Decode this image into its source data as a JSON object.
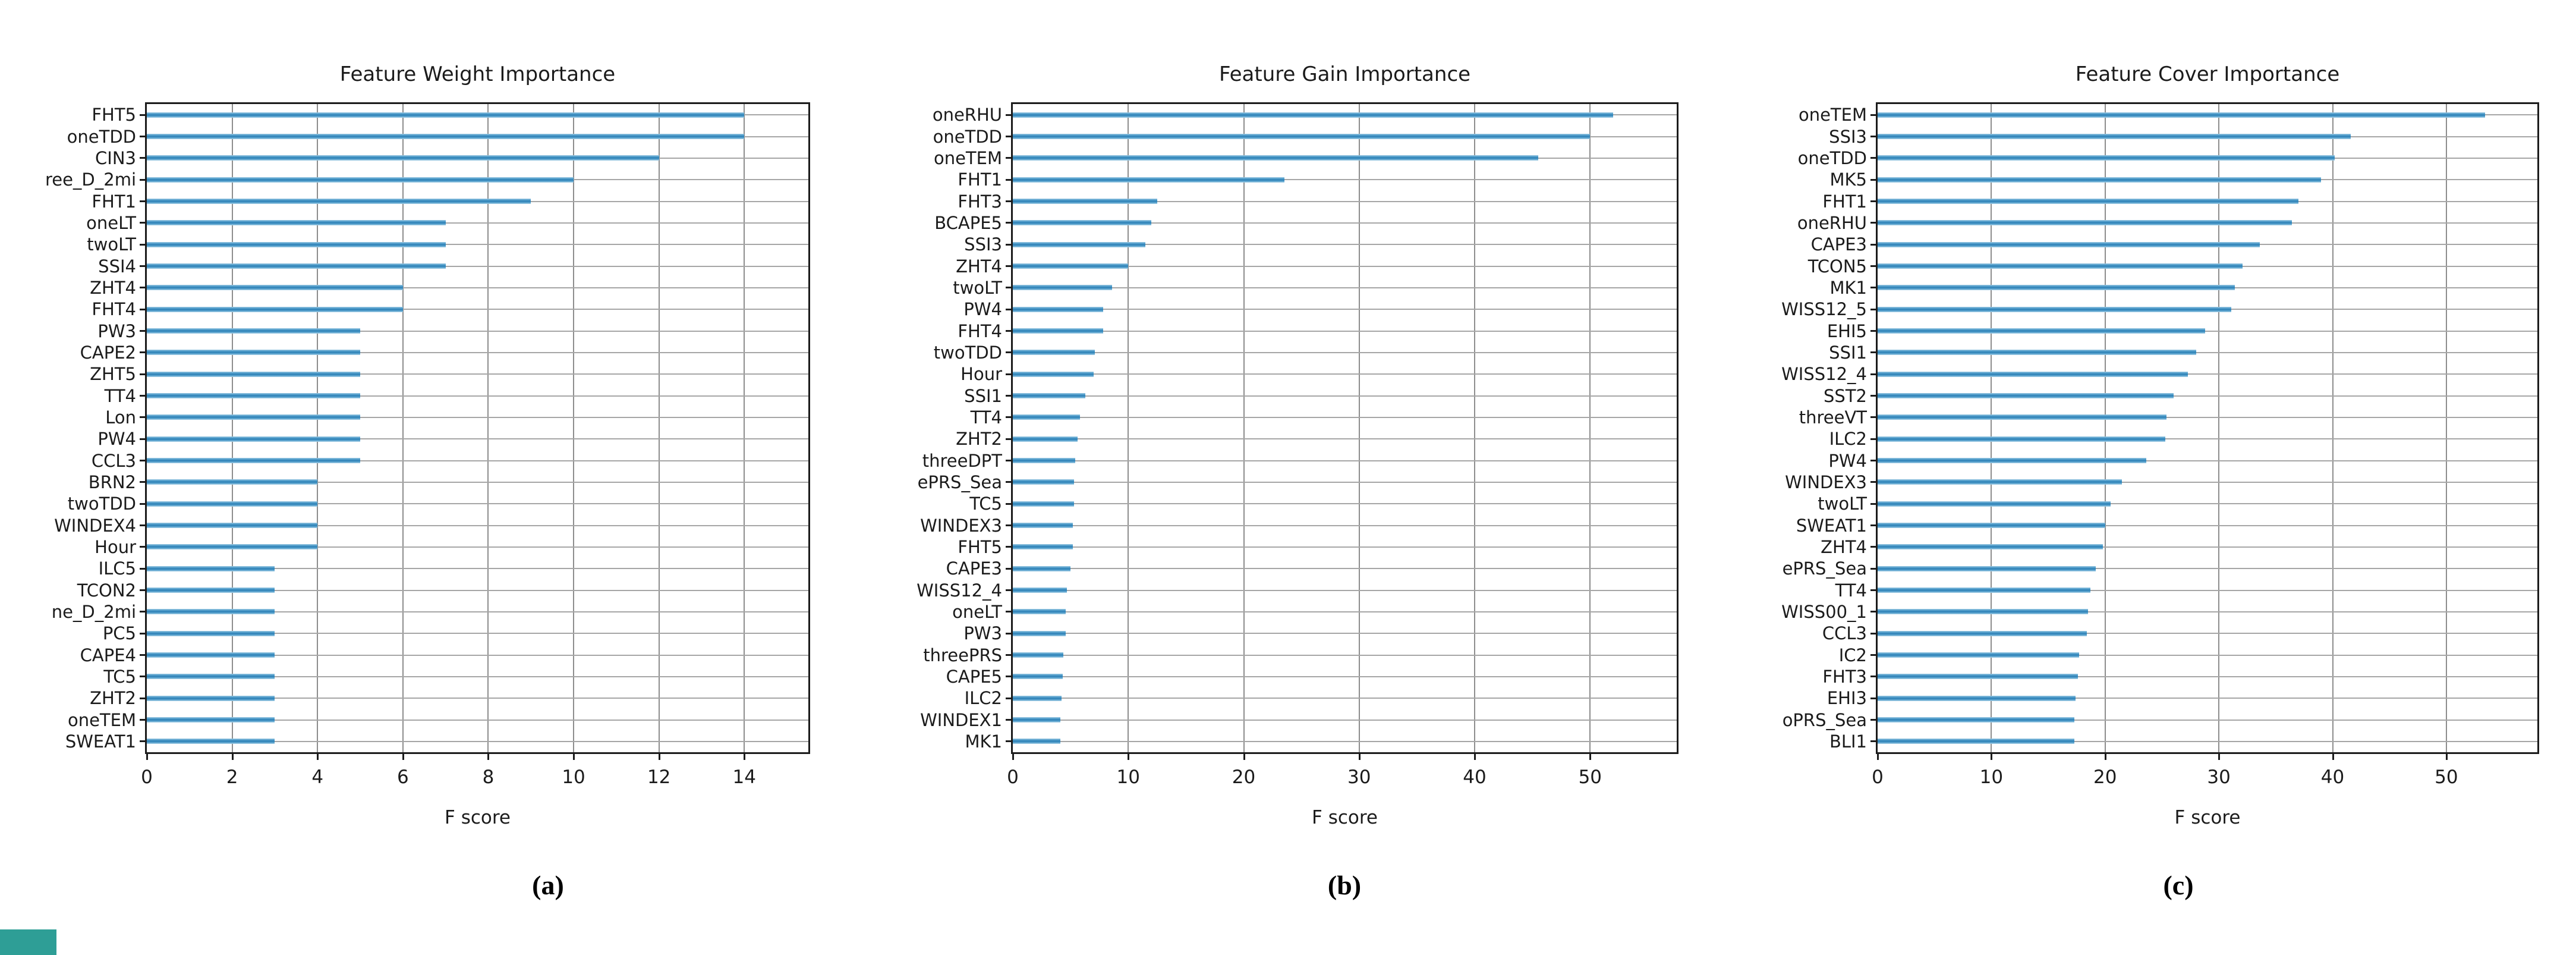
{
  "figure": {
    "background": "#ffffff",
    "bar_color": "#2d80b6",
    "bar_color_light": "#9cc9e2",
    "grid_color_h": "#a6a6a6",
    "grid_color_v": "#8d8d8d",
    "frame_color": "#1c1c1c",
    "corner_accent_color": "#2e9e96"
  },
  "captions": {
    "a": "(a)",
    "b": "(b)",
    "c": "(c)"
  },
  "chart_data": [
    {
      "id": "a",
      "type": "bar",
      "orientation": "horizontal",
      "title": "Feature Weight Importance",
      "xlabel": "F score",
      "grid": true,
      "xlim": [
        0,
        15.5
      ],
      "xticks": [
        0,
        2,
        4,
        6,
        8,
        10,
        12,
        14
      ],
      "categories": [
        "FHT5",
        "oneTDD",
        "CIN3",
        "ree_D_2mi",
        "FHT1",
        "oneLT",
        "twoLT",
        "SSI4",
        "ZHT4",
        "FHT4",
        "PW3",
        "CAPE2",
        "ZHT5",
        "TT4",
        "Lon",
        "PW4",
        "CCL3",
        "BRN2",
        "twoTDD",
        "WINDEX4",
        "Hour",
        "ILC5",
        "TCON2",
        "ne_D_2mi",
        "PC5",
        "CAPE4",
        "TC5",
        "ZHT2",
        "oneTEM",
        "SWEAT1"
      ],
      "values": [
        14,
        14,
        12,
        10,
        9,
        7,
        7,
        7,
        6,
        6,
        5,
        5,
        5,
        5,
        5,
        5,
        5,
        4,
        4,
        4,
        4,
        3,
        3,
        3,
        3,
        3,
        3,
        3,
        3,
        3
      ]
    },
    {
      "id": "b",
      "type": "bar",
      "orientation": "horizontal",
      "title": "Feature Gain Importance",
      "xlabel": "F score",
      "grid": true,
      "xlim": [
        0,
        57.5
      ],
      "xticks": [
        0,
        10,
        20,
        30,
        40,
        50
      ],
      "categories": [
        "oneRHU",
        "oneTDD",
        "oneTEM",
        "FHT1",
        "FHT3",
        "BCAPE5",
        "SSI3",
        "ZHT4",
        "twoLT",
        "PW4",
        "FHT4",
        "twoTDD",
        "Hour",
        "SSI1",
        "TT4",
        "ZHT2",
        "threeDPT",
        "ePRS_Sea",
        "TC5",
        "WINDEX3",
        "FHT5",
        "CAPE3",
        "WISS12_4",
        "oneLT",
        "PW3",
        "threePRS",
        "CAPE5",
        "ILC2",
        "WINDEX1",
        "MK1"
      ],
      "values": [
        52,
        50,
        45.5,
        23.5,
        12.5,
        12,
        11.5,
        10,
        8.6,
        7.8,
        7.8,
        7.1,
        7,
        6.3,
        5.8,
        5.6,
        5.4,
        5.3,
        5.3,
        5.2,
        5.2,
        5,
        4.7,
        4.6,
        4.6,
        4.4,
        4.3,
        4.2,
        4.1,
        4.1
      ]
    },
    {
      "id": "c",
      "type": "bar",
      "orientation": "horizontal",
      "title": "Feature Cover Importance",
      "xlabel": "F score",
      "grid": true,
      "xlim": [
        0,
        58
      ],
      "xticks": [
        0,
        10,
        20,
        30,
        40,
        50
      ],
      "categories": [
        "oneTEM",
        "SSI3",
        "oneTDD",
        "MK5",
        "FHT1",
        "oneRHU",
        "CAPE3",
        "TCON5",
        "MK1",
        "WISS12_5",
        "EHI5",
        "SSI1",
        "WISS12_4",
        "SST2",
        "threeVT",
        "ILC2",
        "PW4",
        "WINDEX3",
        "twoLT",
        "SWEAT1",
        "ZHT4",
        "ePRS_Sea",
        "TT4",
        "WISS00_1",
        "CCL3",
        "IC2",
        "FHT3",
        "EHI3",
        "oPRS_Sea",
        "BLI1"
      ],
      "values": [
        53.4,
        41.6,
        40.2,
        39,
        37,
        36.4,
        33.6,
        32.1,
        31.4,
        31.1,
        28.8,
        28,
        27.3,
        26,
        25.4,
        25.3,
        23.6,
        21.5,
        20.5,
        20,
        19.8,
        19.2,
        18.7,
        18.5,
        18.4,
        17.7,
        17.6,
        17.4,
        17.3,
        17.3
      ]
    }
  ]
}
